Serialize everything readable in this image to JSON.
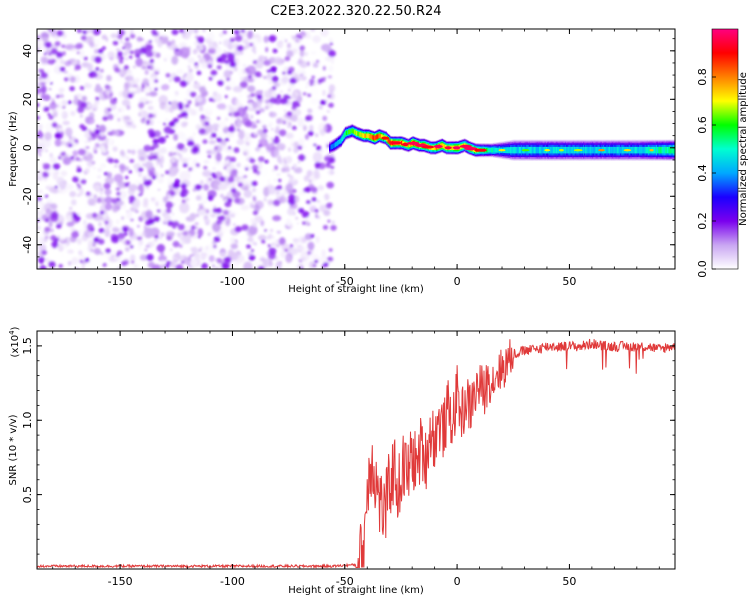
{
  "title": "C2E3.2022.320.22.50.R24",
  "chart_data": [
    {
      "type": "heatmap",
      "xlabel": "Height of straight line (km)",
      "ylabel": "Frequency (Hz)",
      "xlim": [
        -187,
        97
      ],
      "ylim": [
        -50,
        49
      ],
      "xticks": [
        -150,
        -100,
        -50,
        0,
        50
      ],
      "yticks": [
        -40,
        -20,
        0,
        20,
        40
      ],
      "colorbar": {
        "label": "Normalized spectral amplitude",
        "range": [
          0.0,
          1.0
        ],
        "ticks": [
          0.0,
          0.2,
          0.4,
          0.6,
          0.8
        ],
        "colormap": [
          "#ffffff",
          "#c9a6f2",
          "#7a00ee",
          "#1a00ff",
          "#00a8ff",
          "#00ffd0",
          "#00ff00",
          "#ffff00",
          "#ff8000",
          "#ff0000",
          "#ff0080"
        ]
      },
      "noise_region": {
        "x_range": [
          -187,
          -55
        ],
        "amplitude": [
          0.0,
          0.15
        ]
      },
      "ridge": {
        "x": [
          -57,
          -55,
          -52,
          -50,
          -47,
          -45,
          -42,
          -40,
          -37,
          -35,
          -32,
          -30,
          -27,
          -25,
          -22,
          -20,
          -17,
          -15,
          -12,
          -10,
          -7,
          -5,
          -2,
          0,
          3,
          5,
          8,
          10,
          13,
          15,
          20,
          25,
          30,
          40,
          50,
          60,
          70,
          80,
          90,
          95
        ],
        "y": [
          0,
          1,
          3,
          6,
          7,
          6,
          5,
          5,
          4,
          5,
          4,
          2,
          2,
          2,
          1,
          2,
          1,
          1,
          0,
          0,
          1,
          0,
          0,
          0,
          1,
          0,
          -1,
          -1,
          -1,
          -1,
          -1,
          -1,
          -1,
          -1,
          -1,
          -1,
          -1,
          -1,
          -1,
          -1
        ],
        "amplitude": [
          0.3,
          0.4,
          0.45,
          0.55,
          0.6,
          0.65,
          0.7,
          0.75,
          0.85,
          0.8,
          0.7,
          0.85,
          0.75,
          0.8,
          0.7,
          0.85,
          0.75,
          0.8,
          0.7,
          0.75,
          0.8,
          0.7,
          0.75,
          0.8,
          0.7,
          0.75,
          0.7,
          0.6,
          0.55,
          0.5,
          0.45,
          0.45,
          0.45,
          0.45,
          0.45,
          0.45,
          0.45,
          0.45,
          0.5,
          0.55
        ],
        "half_width_hz": [
          2,
          2,
          2,
          2,
          2,
          2,
          2,
          2,
          2,
          2,
          2,
          2,
          2,
          2,
          2,
          2,
          2,
          2,
          2,
          2,
          2,
          2,
          2,
          2,
          2,
          2,
          2,
          2,
          2,
          2,
          2.5,
          3,
          3,
          3,
          3,
          3,
          3,
          3,
          3,
          3
        ]
      }
    },
    {
      "type": "line",
      "xlabel": "Height of straight line (km)",
      "ylabel": "SNR (10 * v/v)",
      "multiplier": "(x10",
      "multiplier_exp": "4",
      "xlim": [
        -187,
        97
      ],
      "ylim": [
        0,
        1.6
      ],
      "xticks": [
        -150,
        -100,
        -50,
        0,
        50
      ],
      "yticks": [
        0.5,
        1.0,
        1.5
      ],
      "series": [
        {
          "color": "#e03a3a",
          "x": [
            -187,
            -150,
            -100,
            -55,
            -45,
            -42,
            -40,
            -38,
            -36,
            -34,
            -32,
            -30,
            -28,
            -26,
            -24,
            -22,
            -20,
            -18,
            -16,
            -14,
            -12,
            -10,
            -8,
            -6,
            -4,
            -2,
            0,
            2,
            4,
            6,
            8,
            10,
            12,
            14,
            16,
            18,
            20,
            22,
            25,
            30,
            35,
            40,
            45,
            50,
            55,
            60,
            65,
            70,
            75,
            80,
            85,
            90,
            95
          ],
          "y": [
            0.02,
            0.02,
            0.02,
            0.02,
            0.03,
            0.1,
            0.55,
            0.8,
            0.6,
            0.45,
            0.4,
            0.6,
            0.7,
            0.55,
            0.72,
            0.65,
            0.8,
            0.7,
            0.85,
            0.75,
            0.95,
            0.9,
            1.0,
            0.95,
            1.1,
            1.0,
            1.2,
            1.05,
            1.15,
            1.1,
            1.2,
            1.25,
            1.2,
            1.3,
            1.28,
            1.35,
            1.35,
            1.4,
            1.45,
            1.47,
            1.48,
            1.5,
            1.5,
            1.5,
            1.5,
            1.52,
            1.5,
            1.5,
            1.5,
            1.5,
            1.5,
            1.48,
            1.5
          ]
        }
      ]
    }
  ]
}
